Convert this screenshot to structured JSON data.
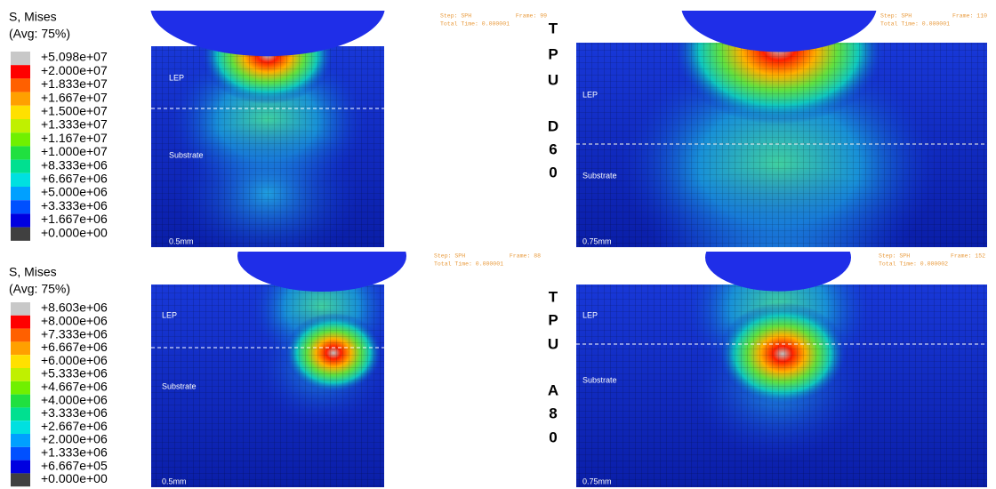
{
  "legends": [
    {
      "title": "S, Mises",
      "subtitle": "(Avg: 75%)",
      "labels": [
        "+5.098e+07",
        "+2.000e+07",
        "+1.833e+07",
        "+1.667e+07",
        "+1.500e+07",
        "+1.333e+07",
        "+1.167e+07",
        "+1.000e+07",
        "+8.333e+06",
        "+6.667e+06",
        "+5.000e+06",
        "+3.333e+06",
        "+1.667e+06",
        "+0.000e+00"
      ]
    },
    {
      "title": "S, Mises",
      "subtitle": "(Avg: 75%)",
      "labels": [
        "+8.603e+06",
        "+8.000e+06",
        "+7.333e+06",
        "+6.667e+06",
        "+6.000e+06",
        "+5.333e+06",
        "+4.667e+06",
        "+4.000e+06",
        "+3.333e+06",
        "+2.667e+06",
        "+2.000e+06",
        "+1.333e+06",
        "+6.667e+05",
        "+0.000e+00"
      ]
    }
  ],
  "row_labels": [
    [
      "T",
      "P",
      "U",
      "D",
      "6",
      "0"
    ],
    [
      "T",
      "P",
      "U",
      "A",
      "8",
      "0"
    ]
  ],
  "panels": [
    {
      "step": "Step: SPH",
      "frame": "Frame: 99",
      "time": "Total Time: 0.000001",
      "top_layer": "LEP",
      "bottom_layer": "Substrate",
      "scale": "0.5mm"
    },
    {
      "step": "Step: SPH",
      "frame": "Frame: 110",
      "time": "Total Time: 0.000001",
      "top_layer": "LEP",
      "bottom_layer": "Substrate",
      "scale": "0.75mm"
    },
    {
      "step": "Step: SPH",
      "frame": "Frame: 88",
      "time": "Total Time: 0.000001",
      "top_layer": "LEP",
      "bottom_layer": "Substrate",
      "scale": "0.5mm"
    },
    {
      "step": "Step: SPH",
      "frame": "Frame: 152",
      "time": "Total Time: 0.000002",
      "top_layer": "LEP",
      "bottom_layer": "Substrate",
      "scale": "0.75mm"
    }
  ]
}
